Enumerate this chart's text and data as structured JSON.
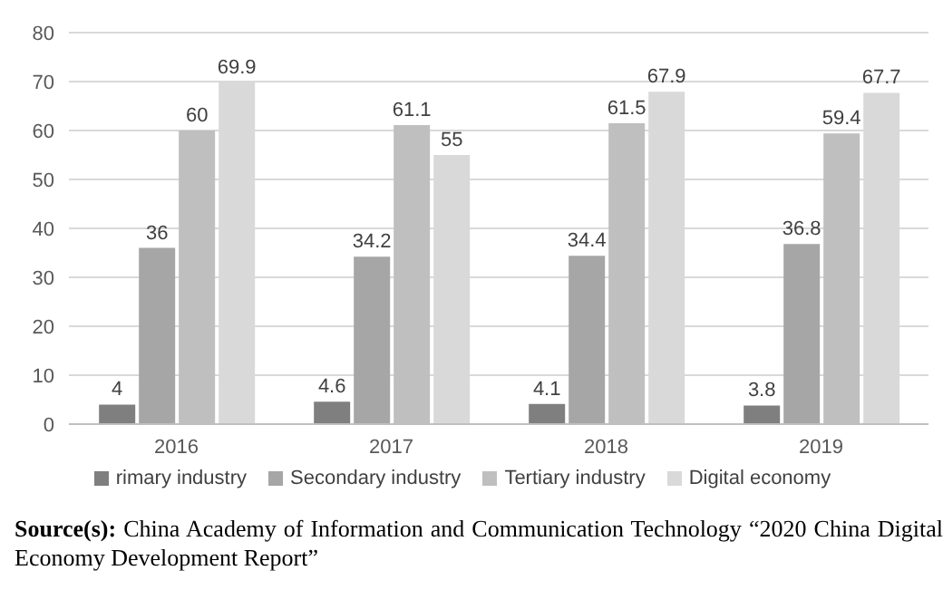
{
  "chart_data": {
    "type": "bar",
    "categories": [
      "2016",
      "2017",
      "2018",
      "2019"
    ],
    "series": [
      {
        "name": "rimary industry",
        "color": "#7f7f7f",
        "values": [
          4,
          4.6,
          4.1,
          3.8
        ]
      },
      {
        "name": "Secondary industry",
        "color": "#a6a6a6",
        "values": [
          36,
          34.2,
          34.4,
          36.8
        ]
      },
      {
        "name": "Tertiary industry",
        "color": "#bfbfbf",
        "values": [
          60,
          61.1,
          61.5,
          59.4
        ]
      },
      {
        "name": "Digital economy",
        "color": "#d9d9d9",
        "values": [
          69.9,
          55,
          67.9,
          67.7
        ]
      }
    ],
    "ylim": [
      0,
      80
    ],
    "yticks": [
      0,
      10,
      20,
      30,
      40,
      50,
      60,
      70,
      80
    ],
    "grid": "y",
    "legend": "bottom",
    "data_labels": true,
    "annotations": [
      "Source(s): China Academy of Information and Communication Technology “2020 China Digital Economy Development Report”"
    ]
  }
}
